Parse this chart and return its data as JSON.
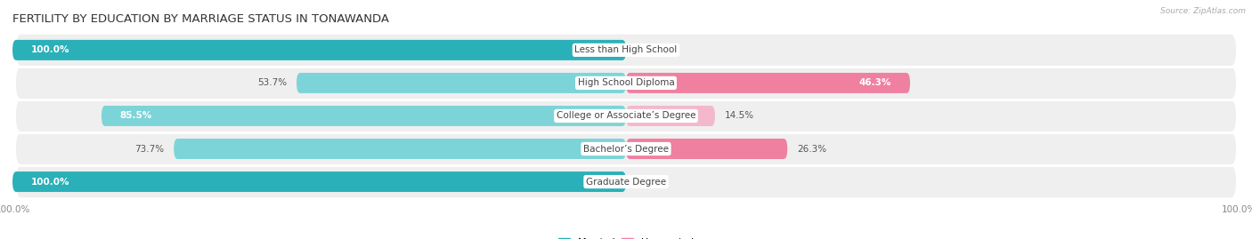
{
  "title": "FERTILITY BY EDUCATION BY MARRIAGE STATUS IN TONAWANDA",
  "source": "Source: ZipAtlas.com",
  "categories": [
    "Less than High School",
    "High School Diploma",
    "College or Associate’s Degree",
    "Bachelor’s Degree",
    "Graduate Degree"
  ],
  "married": [
    100.0,
    53.7,
    85.5,
    73.7,
    100.0
  ],
  "unmarried": [
    0.0,
    46.3,
    14.5,
    26.3,
    0.0
  ],
  "married_color_full": "#2ab0b8",
  "married_color_partial": "#7dd4d8",
  "unmarried_color_full": "#f080a0",
  "unmarried_color_zero": "#f4b8cc",
  "bg_color": "#e8e8e8",
  "bar_height": 0.62,
  "title_fontsize": 9.5,
  "label_fontsize": 7.5,
  "category_fontsize": 7.5,
  "axis_label_fontsize": 7.5,
  "legend_fontsize": 8,
  "row_bg": "#efefef"
}
